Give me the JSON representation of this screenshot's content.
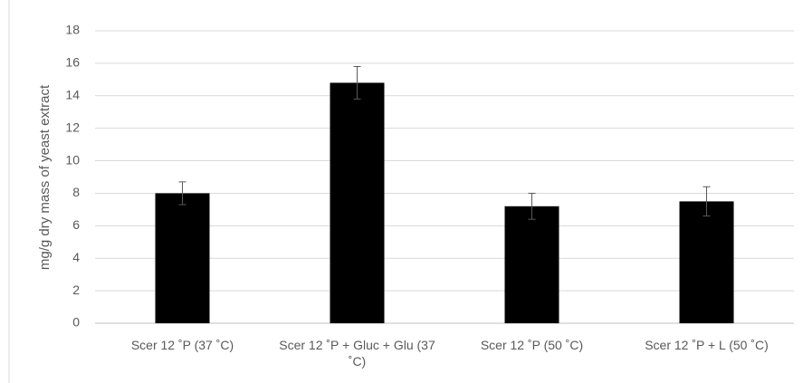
{
  "chart_data": {
    "type": "bar",
    "y_label": "mg/g dry mass of yeast extract",
    "categories": [
      "Scer 12 ˚P (37 ˚C)",
      "Scer 12 ˚P + Gluc + Glu (37 ˚C)",
      "Scer 12 ˚P (50 ˚C)",
      "Scer 12 ˚P + L (50 ˚C)"
    ],
    "values": [
      8.0,
      14.8,
      7.2,
      7.5
    ],
    "errors": [
      0.7,
      1.0,
      0.8,
      0.9
    ],
    "color": "#000000",
    "ylim": [
      0,
      18
    ],
    "yticks": [
      0,
      2,
      4,
      6,
      8,
      10,
      12,
      14,
      16,
      18
    ],
    "grid": true
  }
}
